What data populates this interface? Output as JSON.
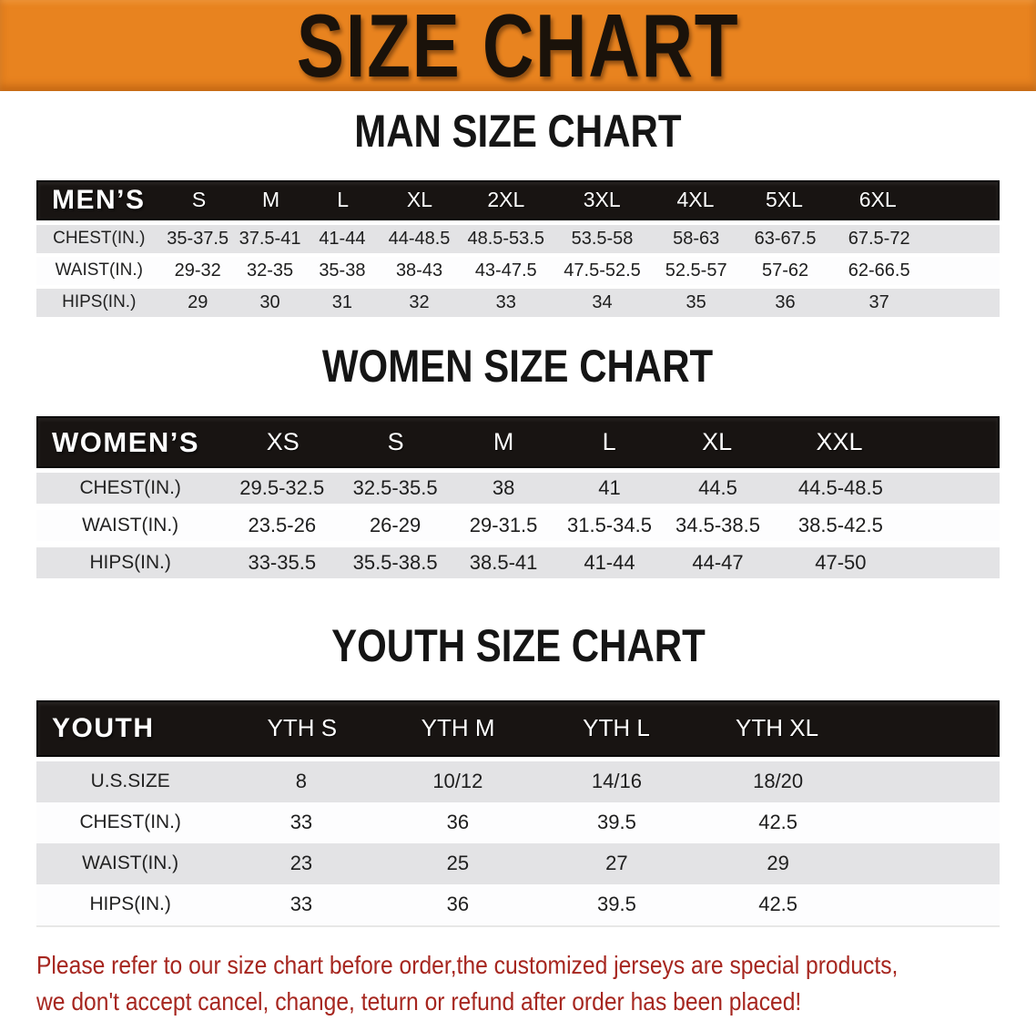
{
  "banner": {
    "title": "SIZE CHART"
  },
  "sections": [
    {
      "id": "men",
      "title": "MAN SIZE CHART",
      "table": {
        "header": [
          "MEN’S",
          "S",
          "M",
          "L",
          "XL",
          "2XL",
          "3XL",
          "4XL",
          "5XL",
          "6XL"
        ],
        "rows": [
          [
            "CHEST(IN.)",
            "35-37.5",
            "37.5-41",
            "41-44",
            "44-48.5",
            "48.5-53.5",
            "53.5-58",
            "58-63",
            "63-67.5",
            "67.5-72"
          ],
          [
            "WAIST(IN.)",
            "29-32",
            "32-35",
            "35-38",
            "38-43",
            "43-47.5",
            "47.5-52.5",
            "52.5-57",
            "57-62",
            "62-66.5"
          ],
          [
            "HIPS(IN.)",
            "29",
            "30",
            "31",
            "32",
            "33",
            "34",
            "35",
            "36",
            "37"
          ]
        ]
      }
    },
    {
      "id": "women",
      "title": "WOMEN SIZE CHART",
      "table": {
        "header": [
          "WOMEN’S",
          "XS",
          "S",
          "M",
          "L",
          "XL",
          "XXL"
        ],
        "rows": [
          [
            "CHEST(IN.)",
            "29.5-32.5",
            "32.5-35.5",
            "38",
            "41",
            "44.5",
            "44.5-48.5"
          ],
          [
            "WAIST(IN.)",
            "23.5-26",
            "26-29",
            "29-31.5",
            "31.5-34.5",
            "34.5-38.5",
            "38.5-42.5"
          ],
          [
            "HIPS(IN.)",
            "33-35.5",
            "35.5-38.5",
            "38.5-41",
            "41-44",
            "44-47",
            "47-50"
          ]
        ]
      }
    },
    {
      "id": "youth",
      "title": "YOUTH SIZE CHART",
      "table": {
        "header": [
          "YOUTH",
          "YTH S",
          "YTH M",
          "YTH L",
          "YTH XL"
        ],
        "rows": [
          [
            "U.S.SIZE",
            "8",
            "10/12",
            "14/16",
            "18/20"
          ],
          [
            "CHEST(IN.)",
            "33",
            "36",
            "39.5",
            "42.5"
          ],
          [
            "WAIST(IN.)",
            "23",
            "25",
            "27",
            "29"
          ],
          [
            "HIPS(IN.)",
            "33",
            "36",
            "39.5",
            "42.5"
          ]
        ]
      }
    }
  ],
  "disclaimer": {
    "lines": [
      "Please refer to our size chart before order,the customized jerseys are special products,",
      "we don't accept cancel, change, teturn or refund after order has been placed!"
    ]
  },
  "colors": {
    "banner_bg": "#E8831F",
    "banner_text": "#1A120A",
    "band_bg": "#181412",
    "band_text": "#FFFFFF",
    "stripe": "#E3E3E5",
    "row_white": "#FDFDFE",
    "title_text": "#151515",
    "body_text": "#1E1E1E",
    "disclaimer_text": "#A6261F"
  }
}
